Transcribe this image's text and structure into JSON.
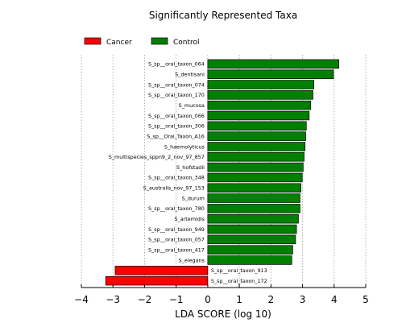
{
  "chart_data": {
    "type": "bar",
    "orientation": "horizontal",
    "title": "Significantly Represented Taxa",
    "xlabel": "LDA SCORE (log 10)",
    "ylabel": "",
    "xlim": [
      -4,
      5
    ],
    "xticks": [
      "−4",
      "−3",
      "−2",
      "−1",
      "0",
      "1",
      "2",
      "3",
      "4",
      "5"
    ],
    "grid": "vertical dotted",
    "legend_placement": "top-left",
    "colors": {
      "Cancer": "#ff0000",
      "Control": "#008000"
    },
    "series": [
      {
        "name": "Cancer",
        "color": "#ff0000"
      },
      {
        "name": "Control",
        "color": "#008000"
      }
    ],
    "bars": [
      {
        "label": "S_sp__oral_taxon_064",
        "value": 4.15,
        "group": "Control"
      },
      {
        "label": "S_dentisani",
        "value": 3.98,
        "group": "Control"
      },
      {
        "label": "S_sp__oral_taxon_074",
        "value": 3.36,
        "group": "Control"
      },
      {
        "label": "S_sp__oral_taxon_170",
        "value": 3.33,
        "group": "Control"
      },
      {
        "label": "S_mucosa",
        "value": 3.26,
        "group": "Control"
      },
      {
        "label": "S_sp__oral_taxon_066",
        "value": 3.21,
        "group": "Control"
      },
      {
        "label": "S_sp__oral_taxon_306",
        "value": 3.12,
        "group": "Control"
      },
      {
        "label": "S_sp__Oral_Taxon_A16",
        "value": 3.1,
        "group": "Control"
      },
      {
        "label": "S_haemolyticus",
        "value": 3.08,
        "group": "Control"
      },
      {
        "label": "S_multispecies_sppn9_2_nov_97_857",
        "value": 3.05,
        "group": "Control"
      },
      {
        "label": "S_hofstadii",
        "value": 3.02,
        "group": "Control"
      },
      {
        "label": "S_sp__oral_taxon_348",
        "value": 2.99,
        "group": "Control"
      },
      {
        "label": "S_australis_nov_97_153",
        "value": 2.95,
        "group": "Control"
      },
      {
        "label": "S_durum",
        "value": 2.92,
        "group": "Control"
      },
      {
        "label": "S_sp__oral_taxon_780",
        "value": 2.92,
        "group": "Control"
      },
      {
        "label": "S_artemidis",
        "value": 2.87,
        "group": "Control"
      },
      {
        "label": "S_sp__oral_taxon_949",
        "value": 2.81,
        "group": "Control"
      },
      {
        "label": "S_sp__oral_taxon_057",
        "value": 2.78,
        "group": "Control"
      },
      {
        "label": "S_sp__oral_taxon_417",
        "value": 2.69,
        "group": "Control"
      },
      {
        "label": "S_elegans",
        "value": 2.66,
        "group": "Control"
      },
      {
        "label": "S_sp__oral_taxon_913",
        "value": -2.93,
        "group": "Cancer"
      },
      {
        "label": "S_sp__oral_taxon_172",
        "value": -3.23,
        "group": "Cancer"
      }
    ]
  }
}
